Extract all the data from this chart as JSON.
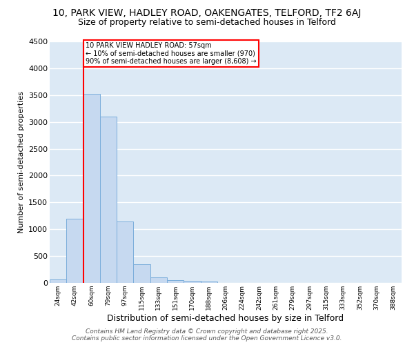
{
  "title": "10, PARK VIEW, HADLEY ROAD, OAKENGATES, TELFORD, TF2 6AJ",
  "subtitle": "Size of property relative to semi-detached houses in Telford",
  "xlabel": "Distribution of semi-detached houses by size in Telford",
  "ylabel": "Number of semi-detached properties",
  "categories": [
    "24sqm",
    "42sqm",
    "60sqm",
    "79sqm",
    "97sqm",
    "115sqm",
    "133sqm",
    "151sqm",
    "170sqm",
    "188sqm",
    "206sqm",
    "224sqm",
    "242sqm",
    "261sqm",
    "279sqm",
    "297sqm",
    "315sqm",
    "333sqm",
    "352sqm",
    "370sqm",
    "388sqm"
  ],
  "values": [
    70,
    1200,
    3520,
    3100,
    1150,
    350,
    100,
    55,
    35,
    20,
    5,
    3,
    2,
    1,
    1,
    0,
    0,
    0,
    0,
    0,
    0
  ],
  "bar_color": "#c6d9f0",
  "bar_edge_color": "#7aaddb",
  "vline_x": 1.5,
  "vline_color": "red",
  "annotation_text": "10 PARK VIEW HADLEY ROAD: 57sqm\n← 10% of semi-detached houses are smaller (970)\n90% of semi-detached houses are larger (8,608) →",
  "annotation_box_color": "white",
  "annotation_box_edge_color": "red",
  "ylim": [
    0,
    4500
  ],
  "yticks": [
    0,
    500,
    1000,
    1500,
    2000,
    2500,
    3000,
    3500,
    4000,
    4500
  ],
  "background_color": "#dce9f5",
  "grid_color": "white",
  "footer_line1": "Contains HM Land Registry data © Crown copyright and database right 2025.",
  "footer_line2": "Contains public sector information licensed under the Open Government Licence v3.0.",
  "title_fontsize": 10,
  "subtitle_fontsize": 9,
  "xlabel_fontsize": 9,
  "ylabel_fontsize": 8
}
